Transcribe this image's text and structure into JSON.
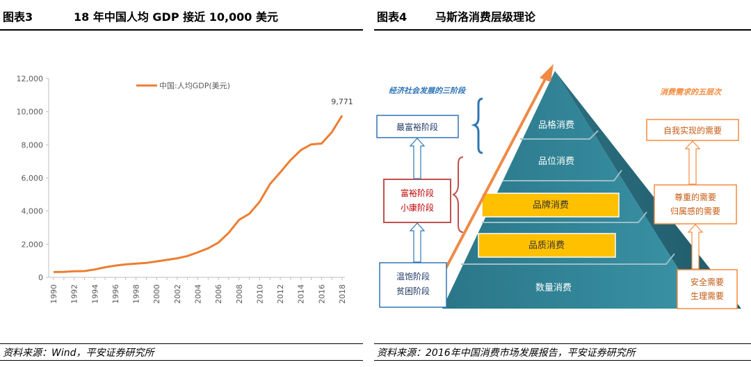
{
  "left": {
    "figure_label": "图表3",
    "title": "18 年中国人均 GDP 接近 10,000 美元",
    "source": "资料来源：Wind，平安证券研究所"
  },
  "right": {
    "figure_label": "图表4",
    "title": "马斯洛消费层级理论",
    "source": "资料来源：2016年中国消费市场发展报告，平安证券研究所",
    "stages_title": "经济社会发展的三阶段",
    "needs_title": "消费需求的五层次",
    "stages": [
      "最富裕阶段",
      "富裕阶段",
      "小康阶段",
      "温饱阶段",
      "贫困阶段"
    ],
    "pyramid_levels": [
      "品格消费",
      "品位消费",
      "品牌消费",
      "品质消费",
      "数量消费"
    ],
    "needs": [
      "自我实现的需要",
      "尊重的需要",
      "归属感的需要",
      "安全需要",
      "生理需要"
    ],
    "colors": {
      "pyramid": "#2c7f91",
      "highlight": "#ffc000",
      "arrow": "#f08a45",
      "stage_blue": "#2e75b6",
      "stage_red": "#c0504d",
      "needs_orange": "#f58a3c"
    }
  },
  "chart_data": {
    "type": "line",
    "title": "",
    "xlabel": "",
    "ylabel": "",
    "x": [
      1990,
      1991,
      1992,
      1993,
      1994,
      1995,
      1996,
      1997,
      1998,
      1999,
      2000,
      2001,
      2002,
      2003,
      2004,
      2005,
      2006,
      2007,
      2008,
      2009,
      2010,
      2011,
      2012,
      2013,
      2014,
      2015,
      2016,
      2017,
      2018
    ],
    "series": [
      {
        "name": "中国:人均GDP(美元)",
        "color": "#ed7d31",
        "values": [
          318,
          333,
          366,
          377,
          473,
          609,
          709,
          782,
          829,
          873,
          959,
          1053,
          1149,
          1289,
          1509,
          1753,
          2099,
          2695,
          3471,
          3838,
          4561,
          5634,
          6338,
          7078,
          7684,
          8028,
          8079,
          8759,
          9771
        ]
      }
    ],
    "ylim": [
      0,
      12000
    ],
    "yticks": [
      0,
      2000,
      4000,
      6000,
      8000,
      10000,
      12000
    ],
    "ytick_labels": [
      "0",
      "2,000",
      "4,000",
      "6,000",
      "8,000",
      "10,000",
      "12,000"
    ],
    "xtick_labels": [
      "1990",
      "1992",
      "1994",
      "1996",
      "1998",
      "2000",
      "2002",
      "2004",
      "2006",
      "2008",
      "2010",
      "2012",
      "2014",
      "2016",
      "2018"
    ],
    "annotation": {
      "x": 2018,
      "label": "9,771"
    },
    "grid": false,
    "legend": "top-center"
  }
}
